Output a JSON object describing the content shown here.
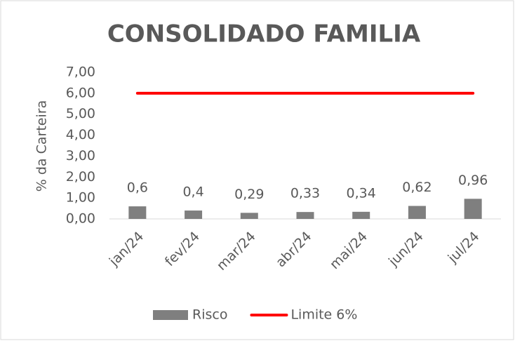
{
  "chart_data": {
    "type": "bar",
    "title": "CONSOLIDADO FAMILIA",
    "y_label": "% da Carteira",
    "categories": [
      "jan/24",
      "fev/24",
      "mar/24",
      "abr/24",
      "mai/24",
      "jun/24",
      "jul/24"
    ],
    "series": [
      {
        "name": "Risco",
        "type": "bar",
        "color": "#7f7f7f",
        "values": [
          0.6,
          0.4,
          0.29,
          0.33,
          0.34,
          0.62,
          0.96
        ],
        "value_labels": [
          "0,6",
          "0,4",
          "0,29",
          "0,33",
          "0,34",
          "0,62",
          "0,96"
        ]
      },
      {
        "name": "Limite 6%",
        "type": "line",
        "color": "#ff0000",
        "values": [
          6,
          6,
          6,
          6,
          6,
          6,
          6
        ]
      }
    ],
    "ylim": [
      0,
      7
    ],
    "yticks": [
      {
        "value": 0,
        "label": "0,00"
      },
      {
        "value": 1,
        "label": "1,00"
      },
      {
        "value": 2,
        "label": "2,00"
      },
      {
        "value": 3,
        "label": "3,00"
      },
      {
        "value": 4,
        "label": "4,00"
      },
      {
        "value": 5,
        "label": "5,00"
      },
      {
        "value": 6,
        "label": "6,00"
      },
      {
        "value": 7,
        "label": "7,00"
      }
    ],
    "legend": "bottom"
  }
}
